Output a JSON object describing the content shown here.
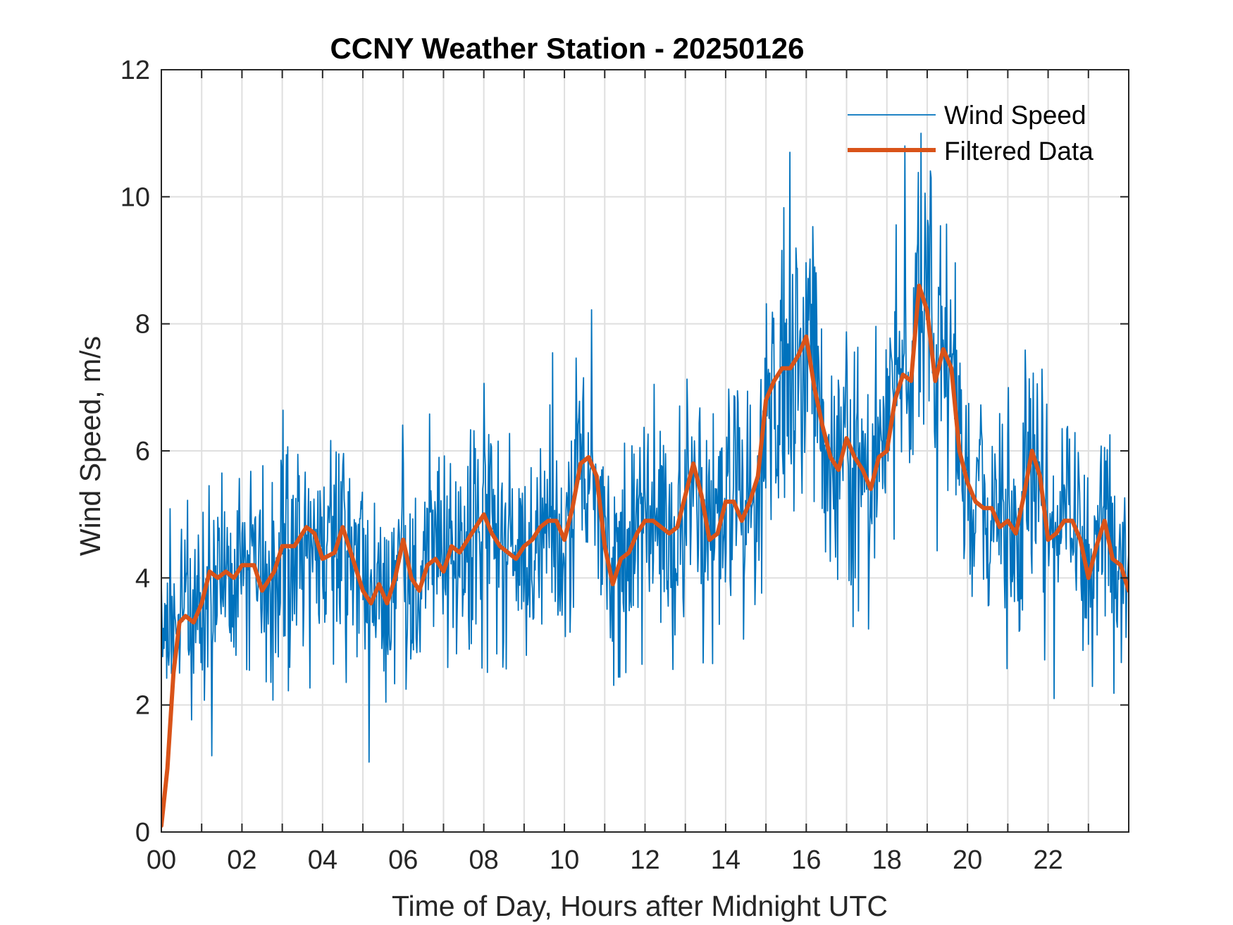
{
  "chart_data": {
    "type": "line",
    "title": "CCNY Weather Station - 20250126",
    "xlabel": "Time of Day, Hours after Midnight UTC",
    "ylabel": "Wind Speed, m/s",
    "xlim": [
      0,
      24
    ],
    "ylim": [
      0,
      12
    ],
    "grid": true,
    "legend_position": "top-right",
    "x_ticks": [
      0,
      2,
      4,
      6,
      8,
      10,
      12,
      14,
      16,
      18,
      20,
      22
    ],
    "x_tick_labels": [
      "00",
      "02",
      "04",
      "06",
      "08",
      "10",
      "12",
      "14",
      "16",
      "18",
      "20",
      "22"
    ],
    "x_minor_grid_step_hours": 1,
    "y_ticks": [
      0,
      2,
      4,
      6,
      8,
      10,
      12
    ],
    "y_tick_labels": [
      "0",
      "2",
      "4",
      "6",
      "8",
      "10",
      "12"
    ],
    "series": [
      {
        "name": "Wind Speed",
        "color": "#0072BD",
        "style": "thin",
        "note": "high-frequency raw samples (~1 per minute) fluctuating roughly ±2–3 m/s around the filtered trend; extremes ~1.1 m/s near 05:15 and ~10.8 m/s near 18:40",
        "peaks": [
          {
            "hour": 15.6,
            "value": 10.7
          },
          {
            "hour": 18.45,
            "value": 10.8
          },
          {
            "hour": 19.1,
            "value": 10.3
          }
        ],
        "troughs": [
          {
            "hour": 5.15,
            "value": 1.1
          },
          {
            "hour": 1.25,
            "value": 1.2
          },
          {
            "hour": 22.15,
            "value": 2.1
          }
        ]
      },
      {
        "name": "Filtered Data",
        "color": "#D95319",
        "style": "thick",
        "x": [
          0,
          0.15,
          0.3,
          0.45,
          0.6,
          0.8,
          1.0,
          1.2,
          1.4,
          1.6,
          1.8,
          2.0,
          2.3,
          2.5,
          2.8,
          3.0,
          3.3,
          3.6,
          3.8,
          4.0,
          4.3,
          4.5,
          4.7,
          5.0,
          5.2,
          5.4,
          5.6,
          5.8,
          6.0,
          6.2,
          6.4,
          6.6,
          6.8,
          7.0,
          7.2,
          7.4,
          7.6,
          7.8,
          8.0,
          8.2,
          8.4,
          8.6,
          8.8,
          9.0,
          9.2,
          9.4,
          9.6,
          9.8,
          10.0,
          10.2,
          10.4,
          10.6,
          10.8,
          11.0,
          11.2,
          11.4,
          11.6,
          11.8,
          12.0,
          12.2,
          12.4,
          12.6,
          12.8,
          13.0,
          13.2,
          13.4,
          13.6,
          13.8,
          14.0,
          14.2,
          14.4,
          14.6,
          14.8,
          15.0,
          15.2,
          15.4,
          15.6,
          15.8,
          16.0,
          16.2,
          16.4,
          16.6,
          16.8,
          17.0,
          17.2,
          17.4,
          17.6,
          17.8,
          18.0,
          18.2,
          18.4,
          18.6,
          18.8,
          19.0,
          19.2,
          19.4,
          19.6,
          19.8,
          20.0,
          20.2,
          20.4,
          20.6,
          20.8,
          21.0,
          21.2,
          21.4,
          21.6,
          21.8,
          22.0,
          22.2,
          22.4,
          22.6,
          22.8,
          23.0,
          23.2,
          23.4,
          23.6,
          23.8,
          24.0
        ],
        "values": [
          0.1,
          1.0,
          2.5,
          3.3,
          3.4,
          3.3,
          3.6,
          4.1,
          4.0,
          4.1,
          4.0,
          4.2,
          4.2,
          3.8,
          4.1,
          4.5,
          4.5,
          4.8,
          4.7,
          4.3,
          4.4,
          4.8,
          4.4,
          3.8,
          3.6,
          3.9,
          3.6,
          4.0,
          4.6,
          4.0,
          3.8,
          4.2,
          4.3,
          4.1,
          4.5,
          4.4,
          4.6,
          4.8,
          5.0,
          4.7,
          4.5,
          4.4,
          4.3,
          4.5,
          4.6,
          4.8,
          4.9,
          4.9,
          4.6,
          5.1,
          5.8,
          5.9,
          5.6,
          4.5,
          3.9,
          4.3,
          4.4,
          4.7,
          4.9,
          4.9,
          4.8,
          4.7,
          4.8,
          5.3,
          5.8,
          5.3,
          4.6,
          4.7,
          5.2,
          5.2,
          4.9,
          5.2,
          5.6,
          6.8,
          7.1,
          7.3,
          7.3,
          7.5,
          7.8,
          7.0,
          6.4,
          5.9,
          5.7,
          6.2,
          5.9,
          5.7,
          5.4,
          5.9,
          6.0,
          6.8,
          7.2,
          7.1,
          8.6,
          8.2,
          7.1,
          7.6,
          7.3,
          6.0,
          5.5,
          5.2,
          5.1,
          5.1,
          4.8,
          4.9,
          4.7,
          5.3,
          6.0,
          5.6,
          4.6,
          4.7,
          4.9,
          4.9,
          4.6,
          4.0,
          4.5,
          4.9,
          4.3,
          4.2,
          3.8
        ]
      }
    ]
  }
}
